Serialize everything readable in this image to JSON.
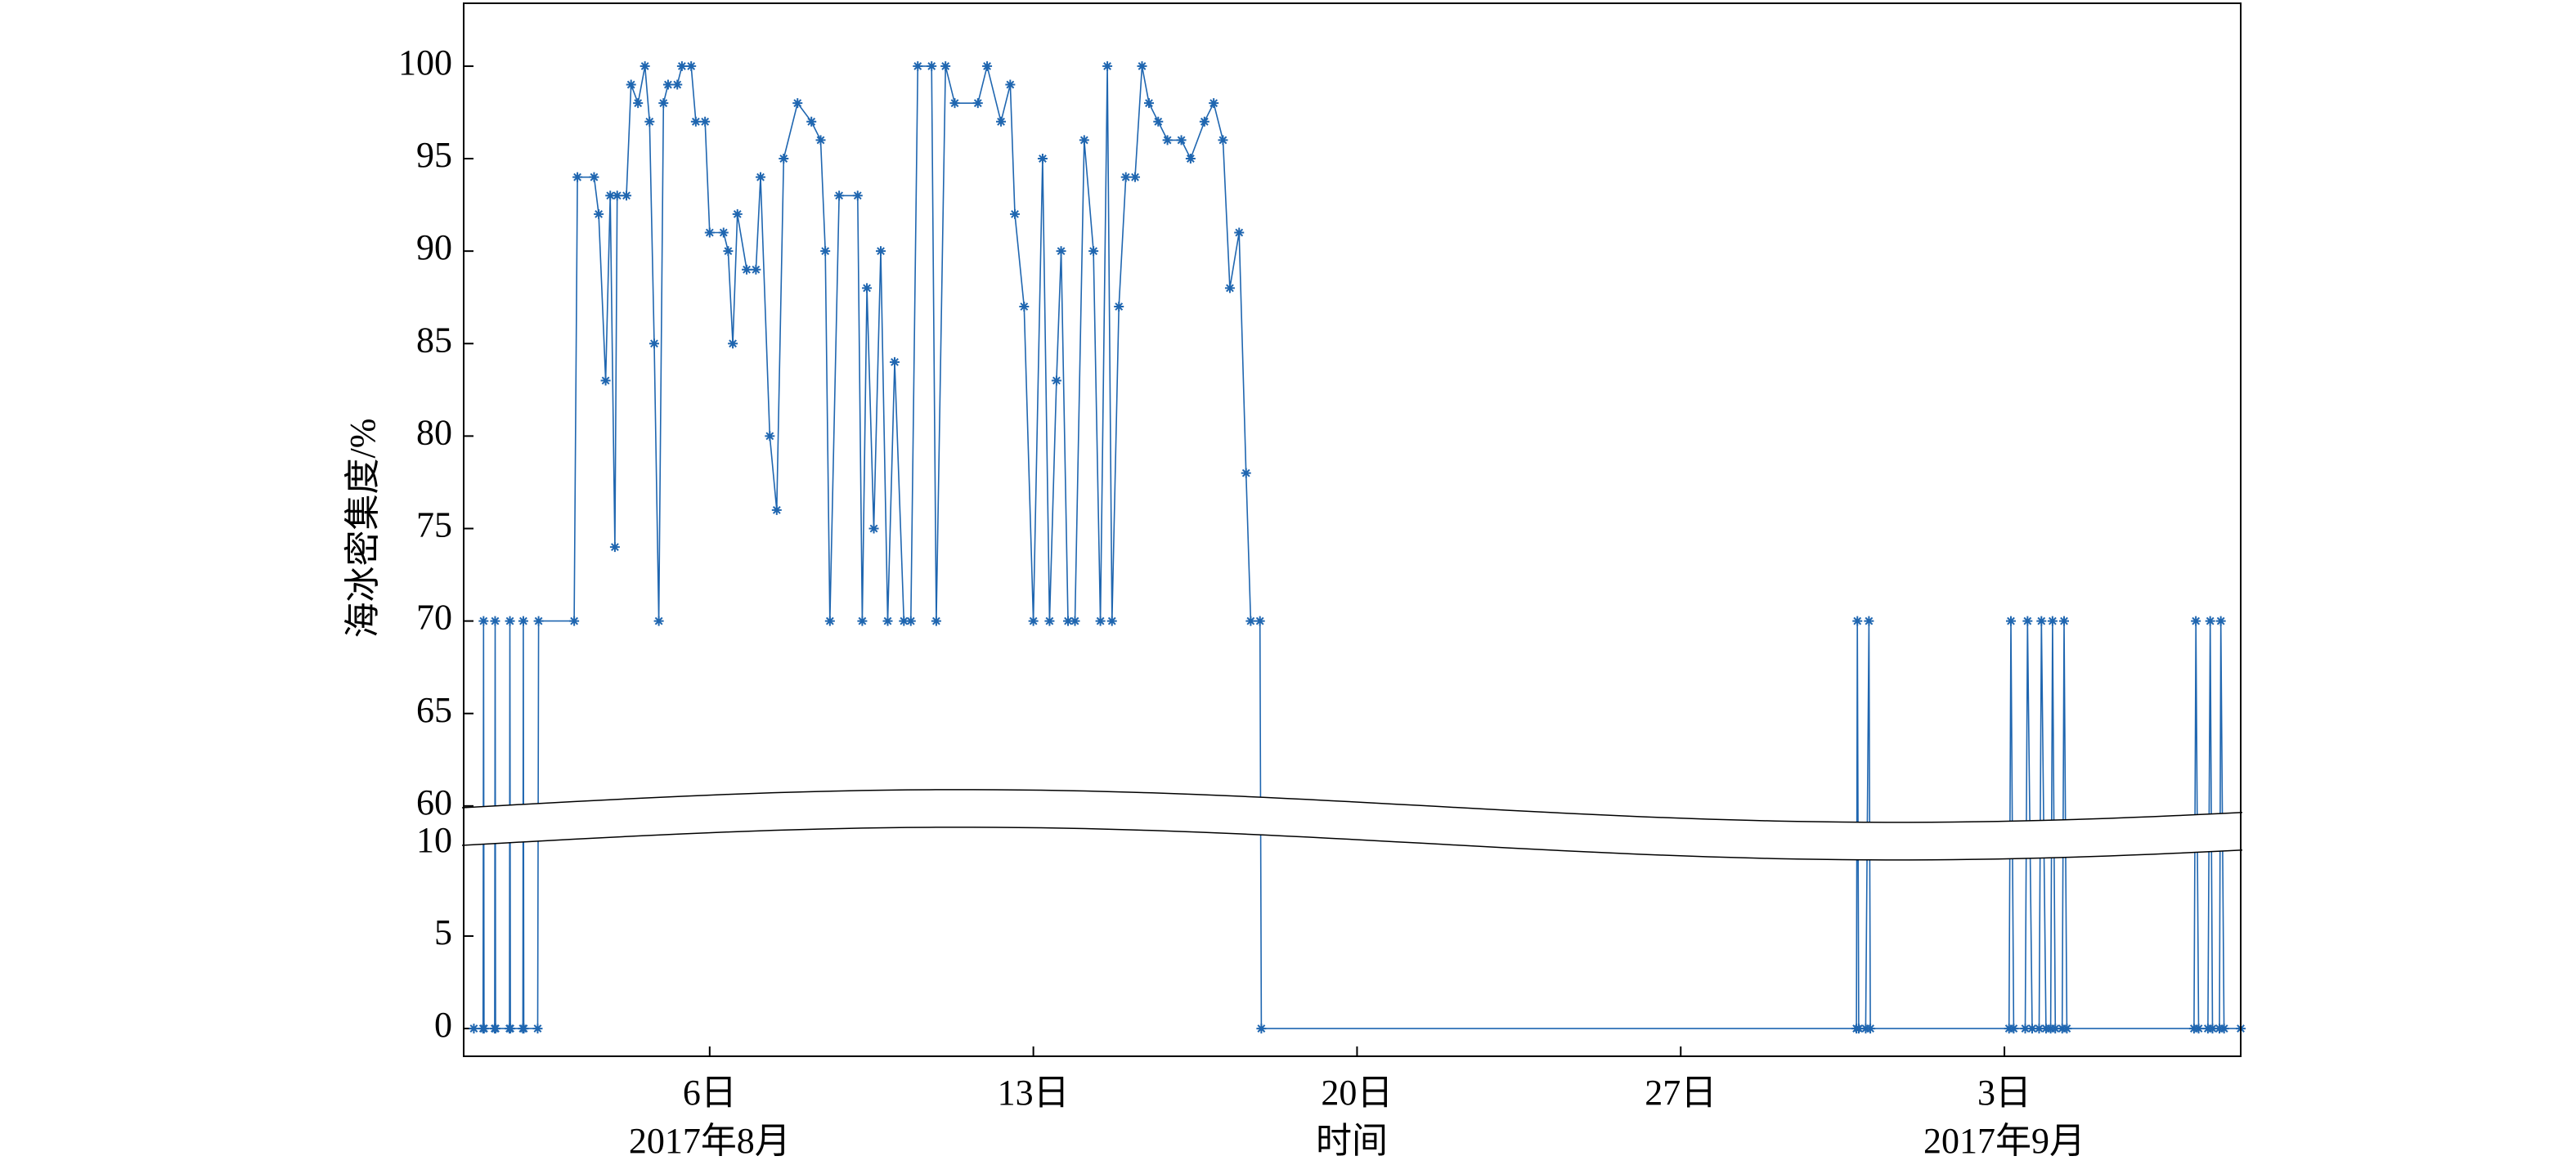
{
  "chart_data": {
    "type": "line",
    "ylabel": "海冰密集度/%",
    "xlabel": "时间",
    "color": "#1f66b0",
    "marker": "*",
    "xlim": [
      0.68,
      39.11
    ],
    "xticks": [
      {
        "value": 6,
        "label": "6日",
        "sublabel": "2017年8月"
      },
      {
        "value": 13,
        "label": "13日"
      },
      {
        "value": 20,
        "label": "20日"
      },
      {
        "value": 27,
        "label": "27日"
      },
      {
        "value": 34,
        "label": "3日",
        "sublabel": "2017年9月"
      }
    ],
    "ylim": [
      -1.5,
      103.4
    ],
    "ybreak": [
      10,
      60
    ],
    "yticks": [
      0,
      5,
      10,
      60,
      65,
      70,
      75,
      80,
      85,
      90,
      95,
      100
    ],
    "x": [
      0.9,
      1.1,
      1.11,
      1.12,
      1.35,
      1.36,
      1.37,
      1.67,
      1.68,
      1.69,
      1.96,
      1.97,
      1.98,
      2.28,
      2.3,
      3.07,
      3.14,
      3.5,
      3.6,
      3.75,
      3.85,
      3.95,
      4.0,
      4.2,
      4.3,
      4.45,
      4.6,
      4.7,
      4.8,
      4.9,
      5.0,
      5.1,
      5.3,
      5.4,
      5.6,
      5.7,
      5.9,
      6.0,
      6.3,
      6.4,
      6.5,
      6.6,
      6.8,
      7.0,
      7.1,
      7.3,
      7.45,
      7.6,
      7.9,
      8.2,
      8.4,
      8.5,
      8.6,
      8.8,
      9.2,
      9.3,
      9.4,
      9.55,
      9.7,
      9.85,
      10.0,
      10.2,
      10.35,
      10.5,
      10.8,
      10.9,
      11.1,
      11.3,
      11.8,
      12.0,
      12.3,
      12.5,
      12.6,
      12.8,
      13.0,
      13.2,
      13.35,
      13.5,
      13.6,
      13.75,
      13.9,
      14.1,
      14.3,
      14.45,
      14.6,
      14.7,
      14.85,
      15.0,
      15.2,
      15.35,
      15.5,
      15.7,
      15.9,
      16.2,
      16.4,
      16.7,
      16.9,
      17.1,
      17.25,
      17.45,
      17.6,
      17.7,
      17.9,
      17.93,
      30.8,
      30.82,
      30.85,
      31.0,
      31.07,
      31.1,
      34.1,
      34.14,
      34.2,
      34.45,
      34.5,
      34.6,
      34.75,
      34.8,
      34.9,
      35.0,
      35.04,
      35.1,
      35.25,
      35.29,
      35.35,
      38.1,
      38.14,
      38.2,
      38.4,
      38.45,
      38.5,
      38.65,
      38.68,
      38.75,
      39.11
    ],
    "values": [
      0,
      0,
      70,
      0,
      0,
      70,
      0,
      0,
      70,
      0,
      0,
      70,
      0,
      0,
      70,
      70,
      94,
      94,
      92,
      83,
      93,
      74,
      93,
      93,
      99,
      98,
      100,
      97,
      85,
      70,
      98,
      99,
      99,
      100,
      100,
      97,
      97,
      91,
      91,
      90,
      85,
      92,
      89,
      89,
      94,
      80,
      76,
      95,
      98,
      97,
      96,
      90,
      70,
      93,
      93,
      70,
      88,
      75,
      90,
      70,
      84,
      70,
      70,
      100,
      100,
      70,
      100,
      98,
      98,
      100,
      97,
      99,
      92,
      87,
      70,
      95,
      70,
      83,
      90,
      70,
      70,
      96,
      90,
      70,
      100,
      70,
      87,
      94,
      94,
      100,
      98,
      97,
      96,
      96,
      95,
      97,
      98,
      96,
      88,
      91,
      78,
      70,
      70,
      0,
      0,
      70,
      0,
      0,
      70,
      0,
      0,
      70,
      0,
      0,
      70,
      0,
      0,
      70,
      0,
      0,
      70,
      0,
      0,
      70,
      0,
      0,
      70,
      0,
      0,
      70,
      0,
      0,
      70,
      0,
      0
    ]
  }
}
